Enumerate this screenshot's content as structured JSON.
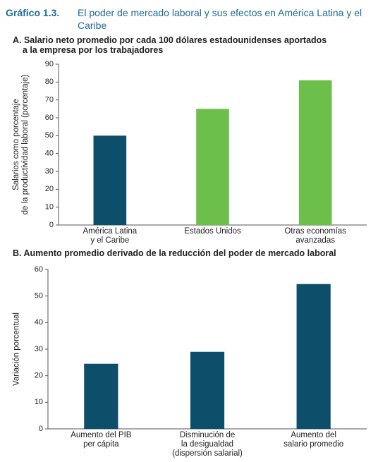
{
  "figure": {
    "label": "Gráfico 1.3.",
    "title": "El poder de mercado laboral y sus efectos en América Latina y el Caribe"
  },
  "chart_data": [
    {
      "type": "bar",
      "title": "A. Salario neto promedio por cada 100 dólares estadounidenses aportados\n    a la empresa por los trabajadores",
      "y_label": "Salarios como porcentaje\nde la productividad laboral (porcentaje)",
      "categories": [
        "América Latina\ny el Caribe",
        "Estados Unidos",
        "Otras economías\navanzadas"
      ],
      "values": [
        50,
        65,
        81
      ],
      "colors": [
        "#0d4f6b",
        "#6dbf4b",
        "#6dbf4b"
      ],
      "ylim": [
        0,
        90
      ],
      "yticks": [
        0,
        10,
        20,
        30,
        40,
        50,
        60,
        70,
        80,
        90
      ]
    },
    {
      "type": "bar",
      "title": "B. Aumento promedio derivado de la reducción del poder de mercado laboral",
      "y_label": "Variación porcentual",
      "categories": [
        "Aumento del PIB\nper cápita",
        "Disminución de\nla desigualdad\n(dispersión salarial)",
        "Aumento del\nsalario promedio"
      ],
      "values": [
        24.5,
        29,
        54.5
      ],
      "colors": [
        "#0d4f6b",
        "#0d4f6b",
        "#0d4f6b"
      ],
      "ylim": [
        0,
        60
      ],
      "yticks": [
        0,
        10,
        20,
        30,
        40,
        50,
        60
      ]
    }
  ]
}
